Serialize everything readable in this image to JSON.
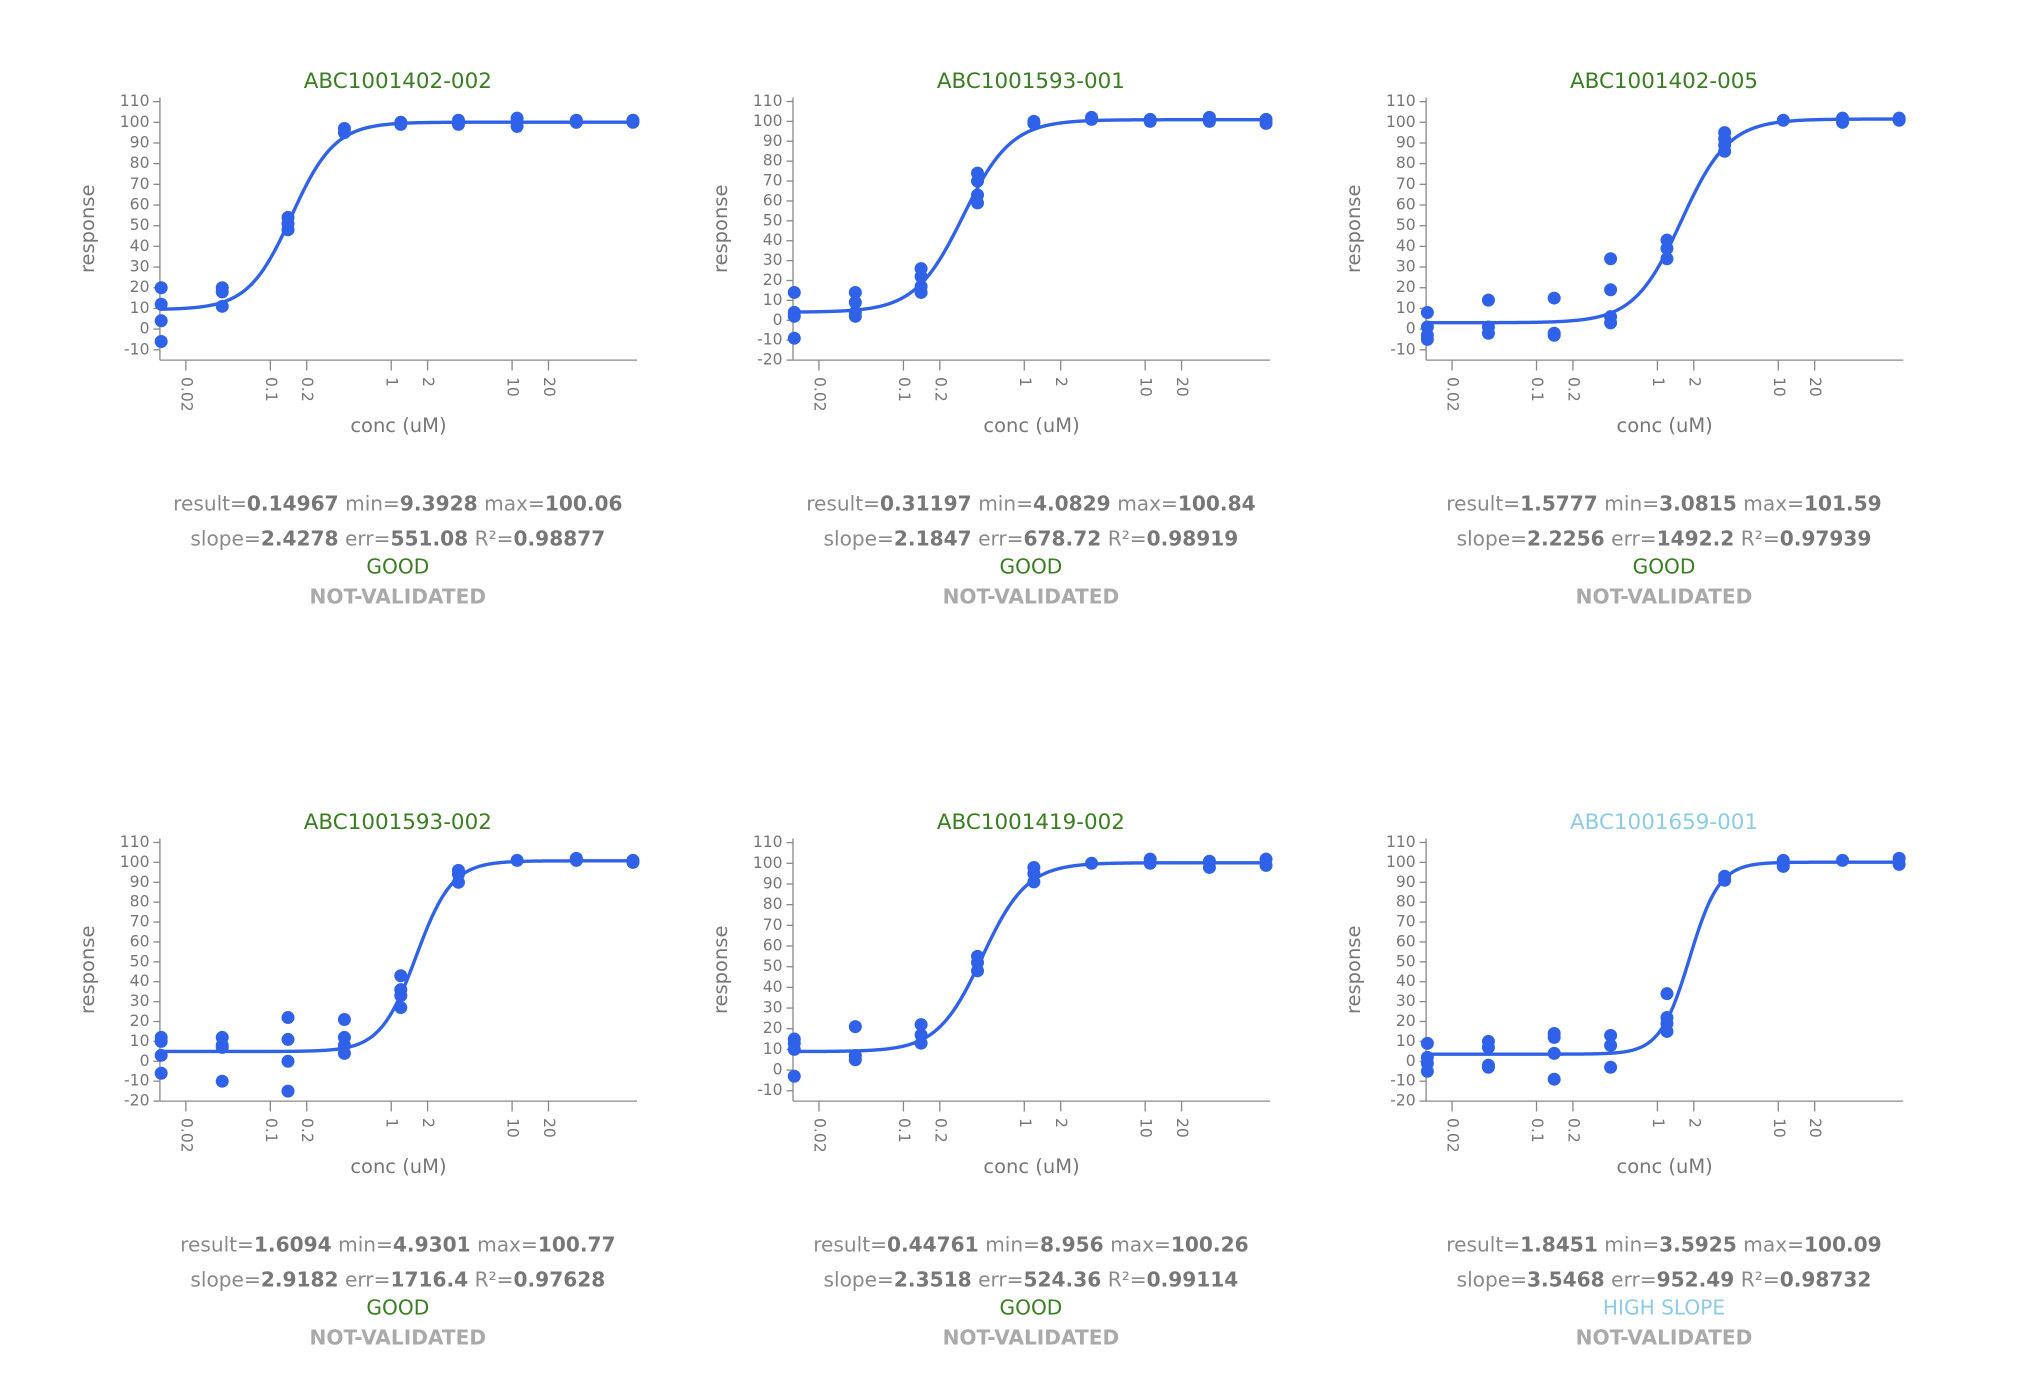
{
  "chart_data": [
    {
      "type": "scatter",
      "title": "ABC1001402-002",
      "title_color": "#3a7d22",
      "xlabel": "conc (uM)",
      "ylabel": "response",
      "log_x": true,
      "color": "#2f62e8",
      "xlim": [
        0.0122,
        108
      ],
      "xticks": [
        0.02,
        0.1,
        0.2,
        1,
        2,
        10,
        20
      ],
      "ylim": [
        -15,
        112
      ],
      "yticks": [
        -10,
        0,
        10,
        20,
        30,
        40,
        50,
        60,
        70,
        80,
        90,
        100,
        110
      ],
      "x": [
        0.0125,
        0.0125,
        0.0125,
        0.0125,
        0.04,
        0.04,
        0.04,
        0.14,
        0.14,
        0.14,
        0.41,
        0.41,
        1.2,
        1.2,
        3.6,
        3.6,
        3.6,
        11,
        11,
        11,
        34,
        34,
        100,
        100
      ],
      "y": [
        20,
        12,
        4,
        -6,
        20,
        18,
        11,
        54,
        51,
        48,
        97,
        95,
        100,
        99,
        101,
        100,
        99,
        102,
        100,
        98,
        101,
        100,
        101,
        100
      ],
      "stats": [
        [
          {
            "label": "result=",
            "value": 0.14967
          },
          {
            "label": "min=",
            "value": 9.3928
          },
          {
            "label": "max=",
            "value": 100.06
          }
        ],
        [
          {
            "label": "slope=",
            "value": 2.4278
          },
          {
            "label": "err=",
            "value": 551.08
          },
          {
            "label": "R²=",
            "value": 0.98877
          }
        ]
      ],
      "status": "GOOD",
      "status_color": "#3a7d22",
      "validation": "NOT-VALIDATED"
    },
    {
      "type": "scatter",
      "title": "ABC1001593-001",
      "title_color": "#3a7d22",
      "xlabel": "conc (uM)",
      "ylabel": "response",
      "log_x": true,
      "color": "#2f62e8",
      "xlim": [
        0.0122,
        108
      ],
      "xticks": [
        0.02,
        0.1,
        0.2,
        1,
        2,
        10,
        20
      ],
      "ylim": [
        -20,
        112
      ],
      "yticks": [
        -20,
        -10,
        0,
        10,
        20,
        30,
        40,
        50,
        60,
        70,
        80,
        90,
        100,
        110
      ],
      "x": [
        0.0125,
        0.0125,
        0.0125,
        0.0125,
        0.04,
        0.04,
        0.04,
        0.04,
        0.14,
        0.14,
        0.14,
        0.14,
        0.41,
        0.41,
        0.41,
        0.41,
        1.2,
        1.2,
        3.6,
        3.6,
        11,
        11,
        34,
        34,
        100,
        100
      ],
      "y": [
        14,
        4,
        2,
        -9,
        14,
        9,
        4,
        2,
        26,
        22,
        17,
        14,
        74,
        70,
        63,
        59,
        100,
        99,
        102,
        101,
        101,
        100,
        102,
        100,
        101,
        99
      ],
      "stats": [
        [
          {
            "label": "result=",
            "value": 0.31197
          },
          {
            "label": "min=",
            "value": 4.0829
          },
          {
            "label": "max=",
            "value": 100.84
          }
        ],
        [
          {
            "label": "slope=",
            "value": 2.1847
          },
          {
            "label": "err=",
            "value": 678.72
          },
          {
            "label": "R²=",
            "value": 0.98919
          }
        ]
      ],
      "status": "GOOD",
      "status_color": "#3a7d22",
      "validation": "NOT-VALIDATED"
    },
    {
      "type": "scatter",
      "title": "ABC1001402-005",
      "title_color": "#3a7d22",
      "xlabel": "conc (uM)",
      "ylabel": "response",
      "log_x": true,
      "color": "#2f62e8",
      "xlim": [
        0.0122,
        108
      ],
      "xticks": [
        0.02,
        0.1,
        0.2,
        1,
        2,
        10,
        20
      ],
      "ylim": [
        -15,
        112
      ],
      "yticks": [
        -10,
        0,
        10,
        20,
        30,
        40,
        50,
        60,
        70,
        80,
        90,
        100,
        110
      ],
      "x": [
        0.0125,
        0.0125,
        0.0125,
        0.0125,
        0.04,
        0.04,
        0.04,
        0.14,
        0.14,
        0.14,
        0.41,
        0.41,
        0.41,
        0.41,
        1.2,
        1.2,
        1.2,
        3.6,
        3.6,
        3.6,
        3.6,
        11,
        34,
        34,
        100,
        100
      ],
      "y": [
        8,
        1,
        -3,
        -5,
        14,
        1,
        -2,
        15,
        -2,
        -3,
        34,
        19,
        6,
        3,
        43,
        39,
        34,
        95,
        92,
        89,
        86,
        101,
        102,
        100,
        102,
        101
      ],
      "stats": [
        [
          {
            "label": "result=",
            "value": 1.5777
          },
          {
            "label": "min=",
            "value": 3.0815
          },
          {
            "label": "max=",
            "value": 101.59
          }
        ],
        [
          {
            "label": "slope=",
            "value": 2.2256
          },
          {
            "label": "err=",
            "value": 1492.2
          },
          {
            "label": "R²=",
            "value": 0.97939
          }
        ]
      ],
      "status": "GOOD",
      "status_color": "#3a7d22",
      "validation": "NOT-VALIDATED"
    },
    {
      "type": "scatter",
      "title": "ABC1001593-002",
      "title_color": "#3a7d22",
      "xlabel": "conc (uM)",
      "ylabel": "response",
      "log_x": true,
      "color": "#2f62e8",
      "xlim": [
        0.0122,
        108
      ],
      "xticks": [
        0.02,
        0.1,
        0.2,
        1,
        2,
        10,
        20
      ],
      "ylim": [
        -20,
        112
      ],
      "yticks": [
        -20,
        -10,
        0,
        10,
        20,
        30,
        40,
        50,
        60,
        70,
        80,
        90,
        100,
        110
      ],
      "x": [
        0.0125,
        0.0125,
        0.0125,
        0.0125,
        0.04,
        0.04,
        0.04,
        0.04,
        0.14,
        0.14,
        0.14,
        0.14,
        0.41,
        0.41,
        0.41,
        0.41,
        1.2,
        1.2,
        1.2,
        1.2,
        3.6,
        3.6,
        3.6,
        11,
        34,
        34,
        100,
        100
      ],
      "y": [
        12,
        10,
        3,
        -6,
        12,
        8,
        7,
        -10,
        22,
        11,
        0,
        -15,
        21,
        12,
        8,
        4,
        43,
        36,
        33,
        27,
        96,
        94,
        90,
        101,
        102,
        101,
        101,
        100
      ],
      "stats": [
        [
          {
            "label": "result=",
            "value": 1.6094
          },
          {
            "label": "min=",
            "value": 4.9301
          },
          {
            "label": "max=",
            "value": 100.77
          }
        ],
        [
          {
            "label": "slope=",
            "value": 2.9182
          },
          {
            "label": "err=",
            "value": 1716.4
          },
          {
            "label": "R²=",
            "value": 0.97628
          }
        ]
      ],
      "status": "GOOD",
      "status_color": "#3a7d22",
      "validation": "NOT-VALIDATED"
    },
    {
      "type": "scatter",
      "title": "ABC1001419-002",
      "title_color": "#3a7d22",
      "xlabel": "conc (uM)",
      "ylabel": "response",
      "log_x": true,
      "color": "#2f62e8",
      "xlim": [
        0.0122,
        108
      ],
      "xticks": [
        0.02,
        0.1,
        0.2,
        1,
        2,
        10,
        20
      ],
      "ylim": [
        -15,
        112
      ],
      "yticks": [
        -10,
        0,
        10,
        20,
        30,
        40,
        50,
        60,
        70,
        80,
        90,
        100,
        110
      ],
      "x": [
        0.0125,
        0.0125,
        0.0125,
        0.0125,
        0.04,
        0.04,
        0.04,
        0.14,
        0.14,
        0.14,
        0.41,
        0.41,
        0.41,
        1.2,
        1.2,
        1.2,
        3.6,
        11,
        11,
        34,
        34,
        100,
        100
      ],
      "y": [
        15,
        13,
        10,
        -3,
        21,
        7,
        5,
        22,
        17,
        13,
        55,
        52,
        48,
        98,
        95,
        91,
        100,
        102,
        100,
        101,
        98,
        102,
        99
      ],
      "stats": [
        [
          {
            "label": "result=",
            "value": 0.44761
          },
          {
            "label": "min=",
            "value": 8.956
          },
          {
            "label": "max=",
            "value": 100.26
          }
        ],
        [
          {
            "label": "slope=",
            "value": 2.3518
          },
          {
            "label": "err=",
            "value": 524.36
          },
          {
            "label": "R²=",
            "value": 0.99114
          }
        ]
      ],
      "status": "GOOD",
      "status_color": "#3a7d22",
      "validation": "NOT-VALIDATED"
    },
    {
      "type": "scatter",
      "title": "ABC1001659-001",
      "title_color": "#8ecae6",
      "xlabel": "conc (uM)",
      "ylabel": "response",
      "log_x": true,
      "color": "#2f62e8",
      "xlim": [
        0.0122,
        108
      ],
      "xticks": [
        0.02,
        0.1,
        0.2,
        1,
        2,
        10,
        20
      ],
      "ylim": [
        -20,
        112
      ],
      "yticks": [
        -20,
        -10,
        0,
        10,
        20,
        30,
        40,
        50,
        60,
        70,
        80,
        90,
        100,
        110
      ],
      "x": [
        0.0125,
        0.0125,
        0.0125,
        0.0125,
        0.04,
        0.04,
        0.04,
        0.04,
        0.14,
        0.14,
        0.14,
        0.14,
        0.41,
        0.41,
        0.41,
        1.2,
        1.2,
        1.2,
        1.2,
        3.6,
        3.6,
        11,
        11,
        34,
        100,
        100
      ],
      "y": [
        9,
        2,
        -1,
        -5,
        10,
        7,
        -2,
        -3,
        14,
        12,
        4,
        -9,
        13,
        8,
        -3,
        34,
        22,
        19,
        15,
        93,
        91,
        101,
        98,
        101,
        102,
        99
      ],
      "stats": [
        [
          {
            "label": "result=",
            "value": 1.8451
          },
          {
            "label": "min=",
            "value": 3.5925
          },
          {
            "label": "max=",
            "value": 100.09
          }
        ],
        [
          {
            "label": "slope=",
            "value": 3.5468
          },
          {
            "label": "err=",
            "value": 952.49
          },
          {
            "label": "R²=",
            "value": 0.98732
          }
        ]
      ],
      "status": "HIGH SLOPE",
      "status_color": "#8ecae6",
      "validation": "NOT-VALIDATED"
    }
  ]
}
